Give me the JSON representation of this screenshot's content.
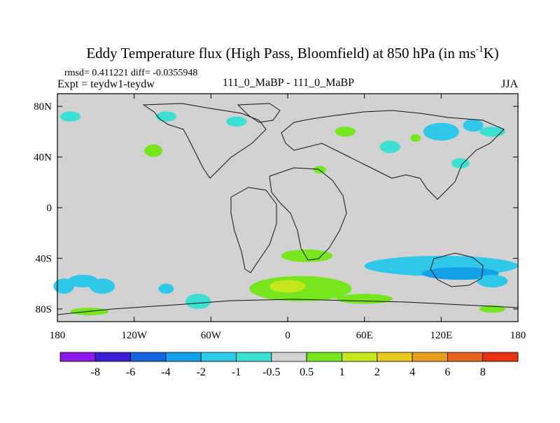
{
  "chart_data": {
    "type": "heatmap",
    "title_prefix": "Eddy Temperature flux (High Pass, Bloomfield) at 850 hPa (in ms",
    "title_superscript": "-1",
    "title_suffix": "K)",
    "stats_line": "rmsd= 0.411221  diff= -0.0355948",
    "experiment_label": "Expt = teydw1-teydw",
    "center_label": "111_0_MaBP - 111_0_MaBP",
    "season_label": "JJA",
    "x_ticks": [
      {
        "value": -180,
        "label": "180"
      },
      {
        "value": -120,
        "label": "120W"
      },
      {
        "value": -60,
        "label": "60W"
      },
      {
        "value": 0,
        "label": "0"
      },
      {
        "value": 60,
        "label": "60E"
      },
      {
        "value": 120,
        "label": "120E"
      },
      {
        "value": 180,
        "label": "180"
      }
    ],
    "y_ticks": [
      {
        "value": 80,
        "label": "80N"
      },
      {
        "value": 40,
        "label": "40N"
      },
      {
        "value": 0,
        "label": "0"
      },
      {
        "value": -40,
        "label": "40S"
      },
      {
        "value": -80,
        "label": "80S"
      }
    ],
    "xlim": [
      -180,
      180
    ],
    "ylim": [
      -90,
      90
    ],
    "colorbar": {
      "colors": [
        "#8a19e6",
        "#3c1ed2",
        "#1464dc",
        "#14a0e6",
        "#30c8e8",
        "#3ce0d2",
        "#d2d2d2",
        "#78e61e",
        "#c8e61e",
        "#e6c81e",
        "#e6a01e",
        "#e6641e",
        "#e6320f"
      ],
      "labels": [
        "-8",
        "-6",
        "-4",
        "-2",
        "-1",
        "-0.5",
        "0.5",
        "1",
        "2",
        "4",
        "6",
        "8"
      ]
    },
    "background_value_range": [
      -0.5,
      0.5
    ],
    "anomaly_regions": [
      {
        "lon": -175,
        "lat": -62,
        "rx": 8,
        "ry": 6,
        "color": "#30c8e8"
      },
      {
        "lon": -160,
        "lat": -58,
        "rx": 12,
        "ry": 5,
        "color": "#30c8e8"
      },
      {
        "lon": -145,
        "lat": -62,
        "rx": 10,
        "ry": 6,
        "color": "#30c8e8"
      },
      {
        "lon": -95,
        "lat": -64,
        "rx": 6,
        "ry": 4,
        "color": "#30c8e8"
      },
      {
        "lon": -70,
        "lat": -74,
        "rx": 10,
        "ry": 6,
        "color": "#3ce0d2"
      },
      {
        "lon": -170,
        "lat": 72,
        "rx": 8,
        "ry": 4,
        "color": "#3ce0d2"
      },
      {
        "lon": -95,
        "lat": 72,
        "rx": 8,
        "ry": 4,
        "color": "#3ce0d2"
      },
      {
        "lon": -40,
        "lat": 68,
        "rx": 8,
        "ry": 4,
        "color": "#3ce0d2"
      },
      {
        "lon": 80,
        "lat": 48,
        "rx": 8,
        "ry": 5,
        "color": "#3ce0d2"
      },
      {
        "lon": 120,
        "lat": 60,
        "rx": 14,
        "ry": 7,
        "color": "#30c8e8"
      },
      {
        "lon": 145,
        "lat": 65,
        "rx": 8,
        "ry": 5,
        "color": "#30c8e8"
      },
      {
        "lon": 160,
        "lat": 60,
        "rx": 10,
        "ry": 4,
        "color": "#3ce0d2"
      },
      {
        "lon": 135,
        "lat": 35,
        "rx": 7,
        "ry": 4,
        "color": "#3ce0d2"
      },
      {
        "lon": -105,
        "lat": 45,
        "rx": 7,
        "ry": 5,
        "color": "#78e61e"
      },
      {
        "lon": 45,
        "lat": 60,
        "rx": 8,
        "ry": 4,
        "color": "#78e61e"
      },
      {
        "lon": 25,
        "lat": 30,
        "rx": 5,
        "ry": 3,
        "color": "#78e61e"
      },
      {
        "lon": 100,
        "lat": 55,
        "rx": 4,
        "ry": 3,
        "color": "#78e61e"
      },
      {
        "lon": 120,
        "lat": -46,
        "rx": 60,
        "ry": 8,
        "color": "#30c8e8"
      },
      {
        "lon": 135,
        "lat": -52,
        "rx": 30,
        "ry": 5,
        "color": "#14a0e6"
      },
      {
        "lon": 160,
        "lat": -58,
        "rx": 12,
        "ry": 5,
        "color": "#30c8e8"
      },
      {
        "lon": 10,
        "lat": -64,
        "rx": 40,
        "ry": 10,
        "color": "#78e61e"
      },
      {
        "lon": 0,
        "lat": -62,
        "rx": 14,
        "ry": 5,
        "color": "#c8e61e"
      },
      {
        "lon": 15,
        "lat": -38,
        "rx": 20,
        "ry": 5,
        "color": "#78e61e"
      },
      {
        "lon": 60,
        "lat": -72,
        "rx": 22,
        "ry": 4,
        "color": "#78e61e"
      },
      {
        "lon": -155,
        "lat": -82,
        "rx": 15,
        "ry": 3,
        "color": "#78e61e"
      },
      {
        "lon": 160,
        "lat": -80,
        "rx": 10,
        "ry": 3,
        "color": "#78e61e"
      }
    ]
  }
}
